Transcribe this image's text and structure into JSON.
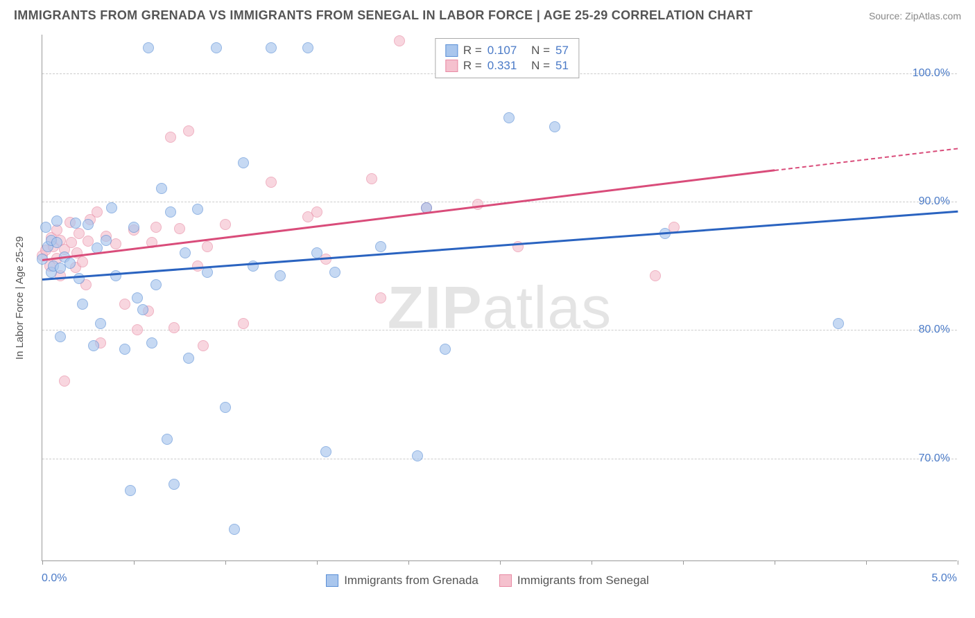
{
  "title": "IMMIGRANTS FROM GRENADA VS IMMIGRANTS FROM SENEGAL IN LABOR FORCE | AGE 25-29 CORRELATION CHART",
  "source": "Source: ZipAtlas.com",
  "y_axis_label": "In Labor Force | Age 25-29",
  "watermark_zip": "ZIP",
  "watermark_atlas": "atlas",
  "chart": {
    "type": "scatter",
    "xlim": [
      0.0,
      5.0
    ],
    "ylim": [
      62.0,
      103.0
    ],
    "background": "#ffffff",
    "grid_color": "#cccccc",
    "axis_color": "#999999",
    "marker_radius": 8,
    "marker_opacity": 0.65,
    "font_size_axis": 16
  },
  "y_ticks": [
    {
      "v": 70.0,
      "label": "70.0%"
    },
    {
      "v": 80.0,
      "label": "80.0%"
    },
    {
      "v": 90.0,
      "label": "90.0%"
    },
    {
      "v": 100.0,
      "label": "100.0%"
    }
  ],
  "x_ticks": [
    0.0,
    0.5,
    1.0,
    1.5,
    2.0,
    2.5,
    3.0,
    3.5,
    4.0,
    4.5,
    5.0
  ],
  "x_first_label": "0.0%",
  "x_last_label": "5.0%",
  "series": {
    "grenada": {
      "label": "Immigrants from Grenada",
      "fill": "#a9c6ed",
      "stroke": "#5a8fd6",
      "trend_color": "#2a63c0",
      "trend_y0": 84.0,
      "trend_y1": 89.3,
      "trend_x1": 5.0,
      "stats": {
        "R_label": "R =",
        "R": "0.107",
        "N_label": "N =",
        "N": "57"
      },
      "points": [
        [
          0.0,
          85.5
        ],
        [
          0.02,
          88.0
        ],
        [
          0.03,
          86.5
        ],
        [
          0.05,
          84.5
        ],
        [
          0.05,
          87.0
        ],
        [
          0.06,
          85.0
        ],
        [
          0.08,
          86.8
        ],
        [
          0.08,
          88.5
        ],
        [
          0.1,
          84.8
        ],
        [
          0.1,
          79.5
        ],
        [
          0.12,
          85.7
        ],
        [
          0.15,
          85.2
        ],
        [
          0.18,
          88.3
        ],
        [
          0.2,
          84.0
        ],
        [
          0.22,
          82.0
        ],
        [
          0.25,
          88.2
        ],
        [
          0.28,
          78.8
        ],
        [
          0.3,
          86.4
        ],
        [
          0.32,
          80.5
        ],
        [
          0.35,
          87.0
        ],
        [
          0.38,
          89.5
        ],
        [
          0.4,
          84.2
        ],
        [
          0.45,
          78.5
        ],
        [
          0.48,
          67.5
        ],
        [
          0.5,
          88.0
        ],
        [
          0.55,
          81.6
        ],
        [
          0.58,
          102.0
        ],
        [
          0.6,
          79.0
        ],
        [
          0.62,
          83.5
        ],
        [
          0.65,
          91.0
        ],
        [
          0.68,
          71.5
        ],
        [
          0.7,
          89.2
        ],
        [
          0.72,
          68.0
        ],
        [
          0.78,
          86.0
        ],
        [
          0.8,
          77.8
        ],
        [
          0.85,
          89.4
        ],
        [
          0.9,
          84.5
        ],
        [
          0.95,
          102.0
        ],
        [
          1.0,
          74.0
        ],
        [
          1.05,
          64.5
        ],
        [
          1.1,
          93.0
        ],
        [
          1.15,
          85.0
        ],
        [
          1.25,
          102.0
        ],
        [
          1.3,
          84.2
        ],
        [
          1.45,
          102.0
        ],
        [
          1.55,
          70.5
        ],
        [
          1.6,
          84.5
        ],
        [
          1.85,
          86.5
        ],
        [
          2.05,
          70.2
        ],
        [
          2.1,
          89.5
        ],
        [
          2.2,
          78.5
        ],
        [
          2.55,
          96.5
        ],
        [
          2.8,
          95.8
        ],
        [
          3.4,
          87.5
        ],
        [
          4.35,
          80.5
        ],
        [
          1.5,
          86.0
        ],
        [
          0.52,
          82.5
        ]
      ]
    },
    "senegal": {
      "label": "Immigrants from Senegal",
      "fill": "#f5c1ce",
      "stroke": "#e889a3",
      "trend_color": "#d94c7a",
      "trend_y0": 85.5,
      "trend_y1": 92.5,
      "trend_x1": 4.0,
      "trend_dash_x1": 5.0,
      "trend_dash_y1": 94.2,
      "stats": {
        "R_label": "R =",
        "R": "0.331",
        "N_label": "N =",
        "N": "51"
      },
      "points": [
        [
          0.0,
          85.8
        ],
        [
          0.02,
          86.2
        ],
        [
          0.04,
          85.0
        ],
        [
          0.05,
          87.2
        ],
        [
          0.06,
          86.5
        ],
        [
          0.08,
          87.8
        ],
        [
          0.08,
          85.6
        ],
        [
          0.1,
          87.0
        ],
        [
          0.1,
          84.2
        ],
        [
          0.12,
          86.3
        ],
        [
          0.12,
          76.0
        ],
        [
          0.15,
          88.4
        ],
        [
          0.16,
          86.8
        ],
        [
          0.18,
          84.9
        ],
        [
          0.19,
          86.0
        ],
        [
          0.2,
          87.5
        ],
        [
          0.22,
          85.3
        ],
        [
          0.24,
          83.5
        ],
        [
          0.25,
          86.9
        ],
        [
          0.26,
          88.6
        ],
        [
          0.3,
          89.2
        ],
        [
          0.32,
          79.0
        ],
        [
          0.35,
          87.3
        ],
        [
          0.4,
          86.7
        ],
        [
          0.45,
          82.0
        ],
        [
          0.5,
          87.8
        ],
        [
          0.52,
          80.0
        ],
        [
          0.58,
          81.5
        ],
        [
          0.6,
          86.8
        ],
        [
          0.62,
          88.0
        ],
        [
          0.7,
          95.0
        ],
        [
          0.72,
          80.2
        ],
        [
          0.75,
          87.9
        ],
        [
          0.8,
          95.5
        ],
        [
          0.85,
          85.0
        ],
        [
          0.88,
          78.8
        ],
        [
          0.9,
          86.5
        ],
        [
          1.0,
          88.2
        ],
        [
          1.1,
          80.5
        ],
        [
          1.25,
          91.5
        ],
        [
          1.45,
          88.8
        ],
        [
          1.5,
          89.2
        ],
        [
          1.55,
          85.5
        ],
        [
          1.8,
          91.8
        ],
        [
          1.85,
          82.5
        ],
        [
          1.95,
          102.5
        ],
        [
          2.1,
          89.5
        ],
        [
          2.38,
          89.8
        ],
        [
          2.6,
          86.5
        ],
        [
          3.35,
          84.2
        ],
        [
          3.45,
          88.0
        ]
      ]
    }
  },
  "bottom_legend": [
    {
      "series": "grenada"
    },
    {
      "series": "senegal"
    }
  ]
}
